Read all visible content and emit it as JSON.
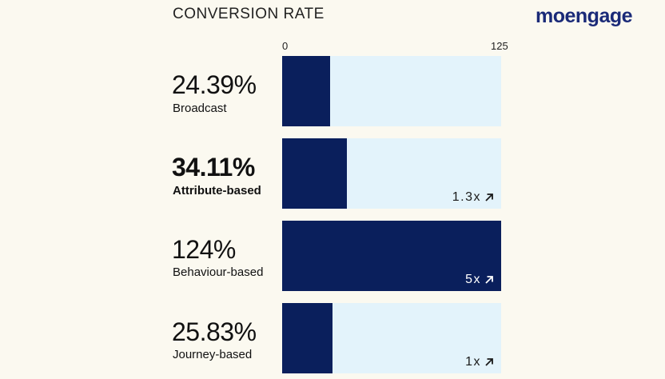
{
  "header": {
    "title": "CONVERSION RATE",
    "logo_text": "moengage"
  },
  "chart_data": {
    "type": "bar",
    "orientation": "horizontal",
    "title": "CONVERSION RATE",
    "xlim": [
      0,
      125
    ],
    "tick_labels": [
      "0",
      "125"
    ],
    "categories": [
      "Broadcast",
      "Attribute-based",
      "Behaviour-based",
      "Journey-based"
    ],
    "values": [
      24.39,
      34.11,
      124,
      25.83
    ],
    "value_labels": [
      "24.39%",
      "34.11%",
      "124%",
      "25.83%"
    ],
    "multipliers": [
      "",
      "1.3x",
      "5x",
      "1x"
    ],
    "highlighted": "Attribute-based"
  },
  "colors": {
    "bar": "#0a1f5c",
    "track": "#e3f3fb",
    "background": "#fbf9f0",
    "logo": "#1a2a78"
  }
}
